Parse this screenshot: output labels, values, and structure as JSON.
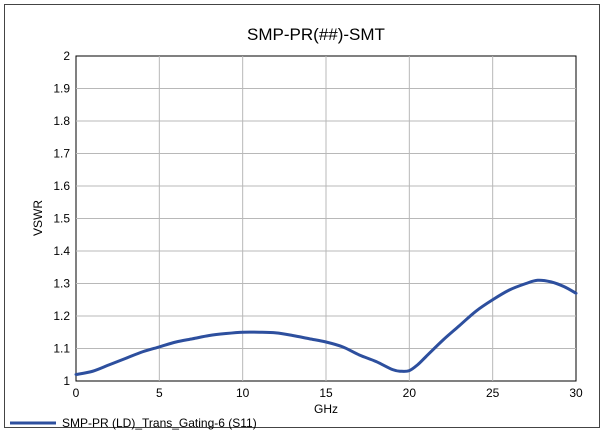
{
  "chart_data": {
    "type": "line",
    "title": "SMP-PR(##)-SMT",
    "xlabel": "GHz",
    "ylabel": "VSWR",
    "xlim": [
      0,
      30
    ],
    "ylim": [
      1,
      2
    ],
    "x_ticks": [
      0,
      5,
      10,
      15,
      20,
      25,
      30
    ],
    "y_ticks": [
      1,
      1.1,
      1.2,
      1.3,
      1.4,
      1.5,
      1.6,
      1.7,
      1.8,
      1.9,
      2
    ],
    "x_tick_labels": [
      "0",
      "5",
      "10",
      "15",
      "20",
      "25",
      "30"
    ],
    "y_tick_labels": [
      "1",
      "1.1",
      "1.2",
      "1.3",
      "1.4",
      "1.5",
      "1.6",
      "1.7",
      "1.8",
      "1.9",
      "2"
    ],
    "grid": true,
    "legend_position": "bottom-left",
    "series": [
      {
        "name": "SMP-PR (LD)_Trans_Gating-6 (S11)",
        "color": "#2d4f9e",
        "x": [
          0,
          1,
          2,
          3,
          4,
          5,
          6,
          7,
          8,
          9,
          10,
          11,
          12,
          13,
          14,
          15,
          16,
          17,
          18,
          19,
          19.5,
          20,
          20.5,
          21,
          22,
          23,
          24,
          25,
          26,
          27,
          27.7,
          28.5,
          29.3,
          30
        ],
        "y": [
          1.02,
          1.03,
          1.05,
          1.07,
          1.09,
          1.105,
          1.12,
          1.13,
          1.14,
          1.146,
          1.15,
          1.15,
          1.148,
          1.14,
          1.13,
          1.12,
          1.105,
          1.08,
          1.06,
          1.035,
          1.03,
          1.032,
          1.05,
          1.075,
          1.125,
          1.17,
          1.215,
          1.25,
          1.28,
          1.3,
          1.31,
          1.305,
          1.29,
          1.27
        ]
      }
    ]
  }
}
